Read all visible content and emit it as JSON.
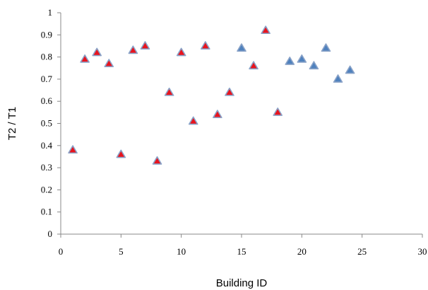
{
  "chart_data": {
    "type": "scatter",
    "title": "",
    "xlabel": "Building ID",
    "ylabel": "T2 / T1",
    "xlim": [
      0,
      30
    ],
    "ylim": [
      0,
      1
    ],
    "x_ticks": [
      "0",
      "5",
      "10",
      "15",
      "20",
      "25",
      "30"
    ],
    "y_ticks": [
      "0",
      "0.1",
      "0.2",
      "0.3",
      "0.4",
      "0.5",
      "0.6",
      "0.7",
      "0.8",
      "0.9",
      "1"
    ],
    "grid": false,
    "legend": "none",
    "marker": "triangle",
    "series": [
      {
        "color": "#e8141e",
        "edge_color": "#8aa3c8",
        "points": [
          [
            1,
            0.38
          ],
          [
            2,
            0.79
          ],
          [
            3,
            0.82
          ],
          [
            4,
            0.77
          ],
          [
            5,
            0.36
          ],
          [
            6,
            0.83
          ],
          [
            7,
            0.85
          ],
          [
            8,
            0.33
          ],
          [
            9,
            0.64
          ],
          [
            10,
            0.82
          ],
          [
            11,
            0.51
          ],
          [
            12,
            0.85
          ],
          [
            13,
            0.54
          ],
          [
            14,
            0.64
          ],
          [
            16,
            0.76
          ],
          [
            17,
            0.92
          ],
          [
            18,
            0.55
          ]
        ]
      },
      {
        "color": "#4f81bd",
        "edge_color": "#8aa3c8",
        "points": [
          [
            15,
            0.84
          ],
          [
            19,
            0.78
          ],
          [
            20,
            0.79
          ],
          [
            21,
            0.76
          ],
          [
            22,
            0.84
          ],
          [
            23,
            0.7
          ],
          [
            24,
            0.74
          ]
        ]
      }
    ]
  }
}
